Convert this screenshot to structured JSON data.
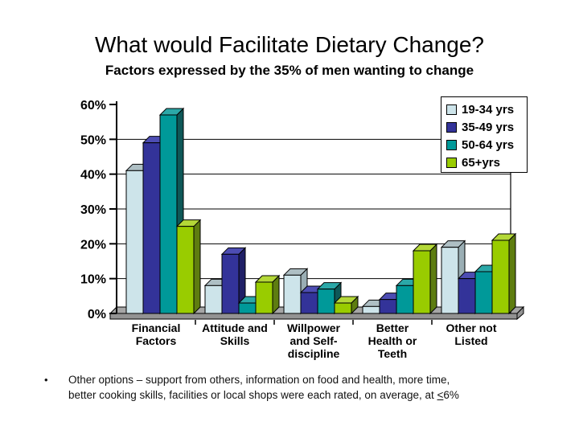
{
  "chart_data": {
    "type": "bar",
    "title": "What would Facilitate Dietary Change?",
    "subtitle": "Factors expressed by the 35% of men wanting to change",
    "categories": [
      "Financial Factors",
      "Attitude and Skills",
      "Willpower and Self-discipline",
      "Better Health or Teeth",
      "Other not Listed"
    ],
    "series": [
      {
        "name": "19-34 yrs",
        "values": [
          41,
          8,
          11,
          2,
          19
        ],
        "color": {
          "front": "#CDE4EA",
          "side": "#9AAEB4",
          "top": "#AEBFC4"
        }
      },
      {
        "name": "35-49 yrs",
        "values": [
          49,
          17,
          6,
          4,
          10
        ],
        "color": {
          "front": "#333399",
          "side": "#1F1F66",
          "top": "#4D4DB3"
        }
      },
      {
        "name": "50-64 yrs",
        "values": [
          57,
          3,
          7,
          8,
          12
        ],
        "color": {
          "front": "#009999",
          "side": "#0E5858",
          "top": "#2BA8A8"
        }
      },
      {
        "name": "65+yrs",
        "values": [
          25,
          9,
          3,
          18,
          21
        ],
        "color": {
          "front": "#99CC00",
          "side": "#5E7D10",
          "top": "#B4D838"
        }
      }
    ],
    "xlabel": "",
    "ylabel": "",
    "ylim": [
      0,
      60
    ],
    "yticks": [
      "0%",
      "10%",
      "20%",
      "30%",
      "40%",
      "50%",
      "60%"
    ],
    "grid": true,
    "legend_position": "top-right",
    "floor_colors": {
      "top": "#A6A6A6",
      "front": "#939393"
    }
  },
  "footnote": {
    "bullet": "•",
    "line1": "Other options – support from others, information on food and health, more time,",
    "line2_before": "better cooking skills, facilities or local shops were each rated, on average, at ",
    "line2_underlined": "<",
    "line2_after": "6%"
  }
}
